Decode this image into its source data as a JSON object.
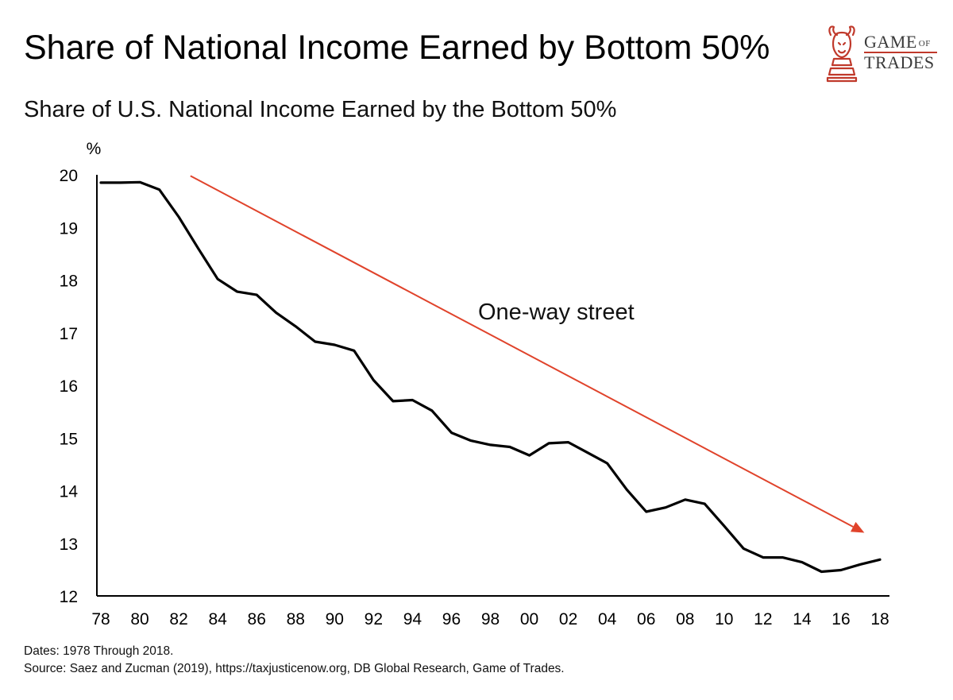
{
  "header": {
    "title": "Share of National Income Earned by Bottom 50%",
    "brand_line1": "GAME",
    "brand_of": "OF",
    "brand_line2": "TRADES"
  },
  "colors": {
    "line": "#000000",
    "arrow": "#e0432b",
    "brand": "#c0392b"
  },
  "chart_data": {
    "type": "line",
    "title": "Share of U.S. National Income Earned by the Bottom 50%",
    "ylabel": "%",
    "xlabel": "",
    "ylim": [
      12,
      20
    ],
    "xlim": [
      1978,
      2018
    ],
    "yticks": [
      12,
      13,
      14,
      15,
      16,
      17,
      18,
      19,
      20
    ],
    "xticks": [
      {
        "year": 1978,
        "label": "78"
      },
      {
        "year": 1980,
        "label": "80"
      },
      {
        "year": 1982,
        "label": "82"
      },
      {
        "year": 1984,
        "label": "84"
      },
      {
        "year": 1986,
        "label": "86"
      },
      {
        "year": 1988,
        "label": "88"
      },
      {
        "year": 1990,
        "label": "90"
      },
      {
        "year": 1992,
        "label": "92"
      },
      {
        "year": 1994,
        "label": "94"
      },
      {
        "year": 1996,
        "label": "96"
      },
      {
        "year": 1998,
        "label": "98"
      },
      {
        "year": 2000,
        "label": "00"
      },
      {
        "year": 2002,
        "label": "02"
      },
      {
        "year": 2004,
        "label": "04"
      },
      {
        "year": 2006,
        "label": "06"
      },
      {
        "year": 2008,
        "label": "08"
      },
      {
        "year": 2010,
        "label": "10"
      },
      {
        "year": 2012,
        "label": "12"
      },
      {
        "year": 2014,
        "label": "14"
      },
      {
        "year": 2016,
        "label": "16"
      },
      {
        "year": 2018,
        "label": "18"
      }
    ],
    "x": [
      1978,
      1979,
      1980,
      1981,
      1982,
      1983,
      1984,
      1985,
      1986,
      1987,
      1988,
      1989,
      1990,
      1991,
      1992,
      1993,
      1994,
      1995,
      1996,
      1997,
      1998,
      1999,
      2000,
      2001,
      2002,
      2003,
      2004,
      2005,
      2006,
      2007,
      2008,
      2009,
      2010,
      2011,
      2012,
      2013,
      2014,
      2015,
      2016,
      2017,
      2018
    ],
    "series": [
      {
        "values": [
          19.85,
          19.85,
          19.86,
          19.72,
          19.2,
          18.6,
          18.02,
          17.78,
          17.72,
          17.38,
          17.12,
          16.83,
          16.77,
          16.66,
          16.1,
          15.7,
          15.72,
          15.52,
          15.1,
          14.95,
          14.87,
          14.83,
          14.67,
          14.9,
          14.92,
          14.72,
          14.52,
          14.02,
          13.6,
          13.68,
          13.83,
          13.75,
          13.33,
          12.9,
          12.73,
          12.73,
          12.64,
          12.46,
          12.49,
          12.6,
          12.69
        ]
      }
    ],
    "annotations": [
      {
        "text": "One-way street",
        "type": "arrow",
        "from": {
          "x": 1982.6,
          "y": 19.98
        },
        "to": {
          "x": 2017.2,
          "y": 13.2
        }
      }
    ],
    "grid": false,
    "legend": "none"
  },
  "footer": {
    "dates_note": "Dates: 1978 Through 2018.",
    "source_note": "Source: Saez and Zucman (2019), https://taxjusticenow.org, DB Global Research, Game of Trades."
  }
}
